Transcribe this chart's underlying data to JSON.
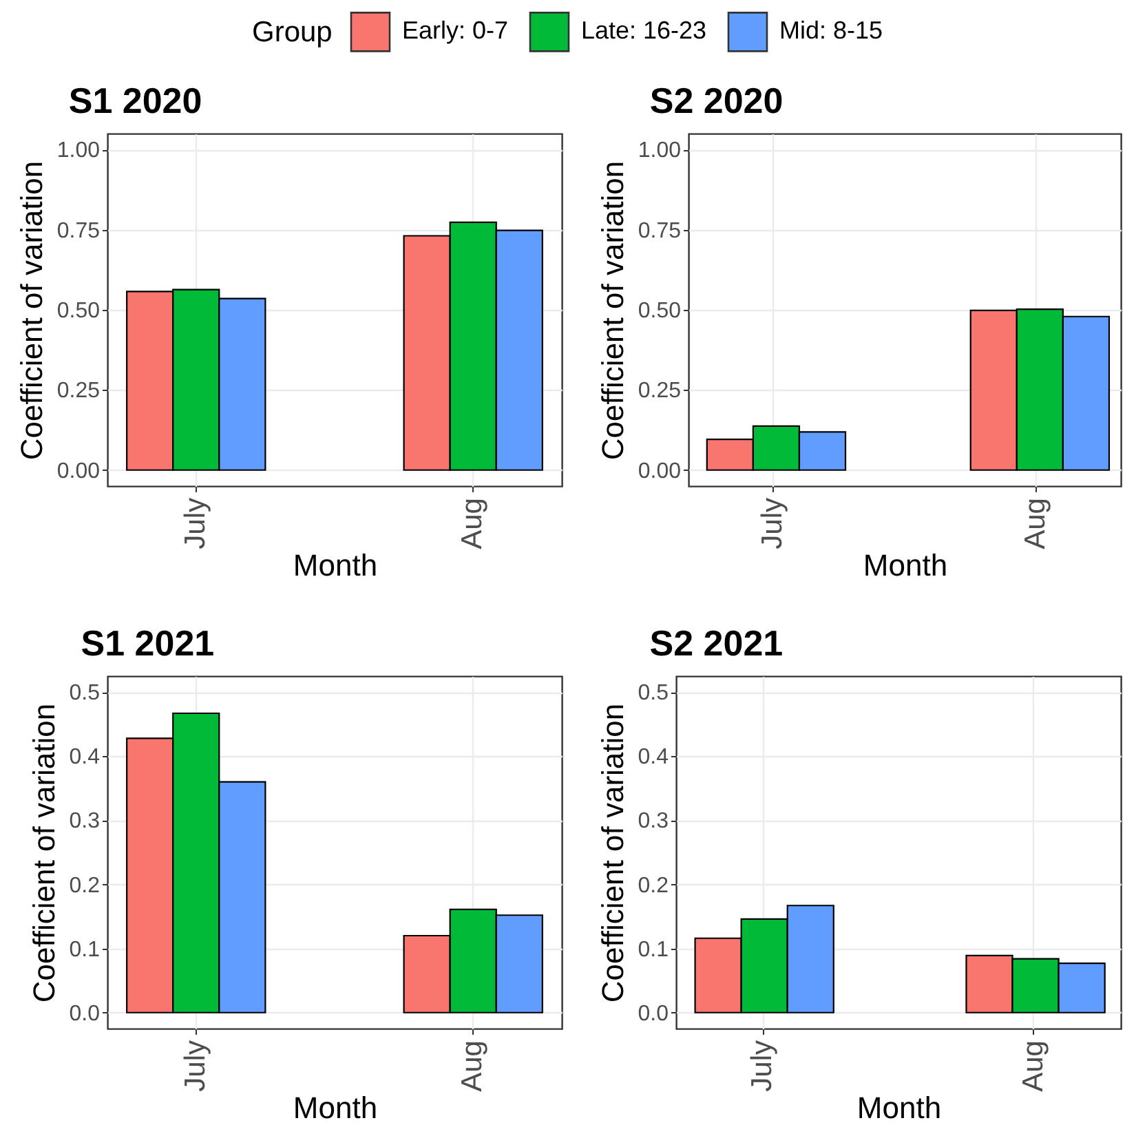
{
  "chart_data": [
    {
      "type": "bar",
      "title": "S1 2020",
      "xlabel": "Month",
      "ylabel": "Coefficient of variation",
      "legend_title": "Group",
      "legend": "top",
      "grid": true,
      "categories": [
        "July",
        "Aug"
      ],
      "series": [
        {
          "name": "Early: 0-7",
          "color": "#f8766d",
          "values": [
            0.557,
            0.731
          ]
        },
        {
          "name": "Late: 16-23",
          "color": "#00ba38",
          "values": [
            0.563,
            0.773
          ]
        },
        {
          "name": "Mid: 8-15",
          "color": "#619cff",
          "values": [
            0.535,
            0.748
          ]
        }
      ],
      "ylim": [
        -0.05,
        1.05
      ],
      "yticks": [
        {
          "value": 0,
          "label": "0.00"
        },
        0.25,
        {
          "value": 0.5,
          "label": "0.50"
        },
        0.75,
        {
          "value": 1,
          "label": "1.00"
        }
      ]
    },
    {
      "type": "bar",
      "title": "S2 2020",
      "xlabel": "Month",
      "ylabel": "Coefficient of variation",
      "grid": true,
      "categories": [
        "July",
        "Aug"
      ],
      "series": [
        {
          "name": "Early: 0-7",
          "color": "#f8766d",
          "values": [
            0.096,
            0.498
          ]
        },
        {
          "name": "Late: 16-23",
          "color": "#00ba38",
          "values": [
            0.137,
            0.502
          ]
        },
        {
          "name": "Mid: 8-15",
          "color": "#619cff",
          "values": [
            0.119,
            0.479
          ]
        }
      ],
      "ylim": [
        -0.05,
        1.05
      ],
      "yticks": [
        {
          "value": 0,
          "label": "0.00"
        },
        0.25,
        {
          "value": 0.5,
          "label": "0.50"
        },
        0.75,
        {
          "value": 1,
          "label": "1.00"
        }
      ]
    },
    {
      "type": "bar",
      "title": "S1 2021",
      "xlabel": "Month",
      "ylabel": "Coefficient of variation",
      "grid": true,
      "categories": [
        "July",
        "Aug"
      ],
      "series": [
        {
          "name": "Early: 0-7",
          "color": "#f8766d",
          "values": [
            0.428,
            0.12
          ]
        },
        {
          "name": "Late: 16-23",
          "color": "#00ba38",
          "values": [
            0.467,
            0.161
          ]
        },
        {
          "name": "Mid: 8-15",
          "color": "#619cff",
          "values": [
            0.36,
            0.152
          ]
        }
      ],
      "ylim": [
        -0.025,
        0.525
      ],
      "yticks": [
        {
          "value": 0,
          "label": "0.0"
        },
        0.1,
        0.2,
        0.3,
        0.4,
        0.5
      ]
    },
    {
      "type": "bar",
      "title": "S2 2021",
      "xlabel": "Month",
      "ylabel": "Coefficient of variation",
      "grid": true,
      "categories": [
        "July",
        "Aug"
      ],
      "series": [
        {
          "name": "Early: 0-7",
          "color": "#f8766d",
          "values": [
            0.116,
            0.089
          ]
        },
        {
          "name": "Late: 16-23",
          "color": "#00ba38",
          "values": [
            0.146,
            0.084
          ]
        },
        {
          "name": "Mid: 8-15",
          "color": "#619cff",
          "values": [
            0.167,
            0.077
          ]
        }
      ],
      "ylim": [
        -0.025,
        0.525
      ],
      "yticks": [
        {
          "value": 0,
          "label": "0.0"
        },
        0.1,
        0.2,
        0.3,
        0.4,
        0.5
      ]
    }
  ]
}
